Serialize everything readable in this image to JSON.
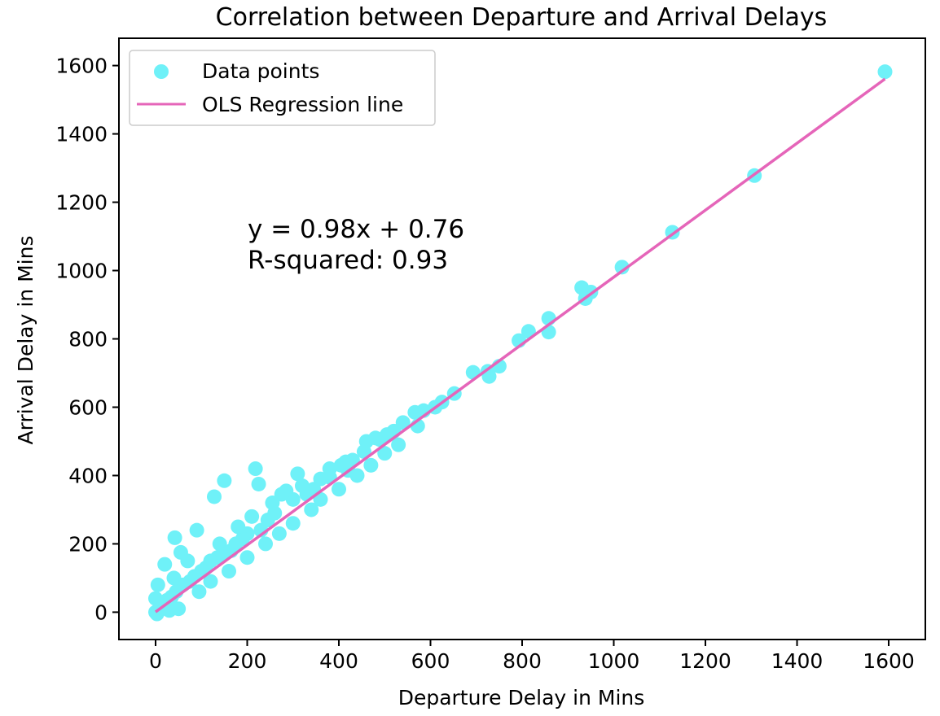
{
  "chart_data": {
    "type": "scatter",
    "title": "Correlation between Departure and Arrival Delays",
    "xlabel": "Departure Delay in Mins",
    "ylabel": "Arrival Delay in Mins",
    "xlim": [
      -80,
      1680
    ],
    "ylim": [
      -80,
      1680
    ],
    "xticks": [
      0,
      200,
      400,
      600,
      800,
      1000,
      1200,
      1400,
      1600
    ],
    "yticks": [
      0,
      200,
      400,
      600,
      800,
      1000,
      1200,
      1400,
      1600
    ],
    "grid": false,
    "legend": {
      "placement": "top-left",
      "entries": [
        "Data points",
        "OLS Regression line"
      ]
    },
    "annotations": [
      "y = 0.98x + 0.76",
      "R-squared: 0.93"
    ],
    "colors": {
      "points": "#6ff1f8",
      "line": "#e565b9"
    },
    "series": [
      {
        "name": "Data points",
        "kind": "scatter",
        "points": [
          [
            1592,
            1582
          ],
          [
            1307,
            1278
          ],
          [
            1128,
            1112
          ],
          [
            1018,
            1010
          ],
          [
            950,
            937
          ],
          [
            938,
            918
          ],
          [
            930,
            950
          ],
          [
            858,
            820
          ],
          [
            858,
            860
          ],
          [
            814,
            822
          ],
          [
            793,
            795
          ],
          [
            750,
            720
          ],
          [
            728,
            690
          ],
          [
            725,
            705
          ],
          [
            693,
            702
          ],
          [
            652,
            640
          ],
          [
            625,
            615
          ],
          [
            610,
            600
          ],
          [
            585,
            590
          ],
          [
            572,
            545
          ],
          [
            566,
            585
          ],
          [
            540,
            555
          ],
          [
            520,
            530
          ],
          [
            505,
            520
          ],
          [
            490,
            505
          ],
          [
            460,
            500
          ],
          [
            455,
            470
          ],
          [
            430,
            445
          ],
          [
            420,
            415
          ],
          [
            405,
            430
          ],
          [
            380,
            395
          ],
          [
            360,
            390
          ],
          [
            345,
            360
          ],
          [
            330,
            345
          ],
          [
            310,
            405
          ],
          [
            300,
            330
          ],
          [
            285,
            355
          ],
          [
            275,
            345
          ],
          [
            260,
            290
          ],
          [
            245,
            270
          ],
          [
            230,
            240
          ],
          [
            225,
            375
          ],
          [
            218,
            420
          ],
          [
            200,
            230
          ],
          [
            190,
            215
          ],
          [
            175,
            200
          ],
          [
            165,
            180
          ],
          [
            150,
            385
          ],
          [
            150,
            170
          ],
          [
            135,
            160
          ],
          [
            128,
            338
          ],
          [
            120,
            150
          ],
          [
            110,
            130
          ],
          [
            100,
            120
          ],
          [
            90,
            240
          ],
          [
            85,
            105
          ],
          [
            75,
            90
          ],
          [
            60,
            80
          ],
          [
            55,
            175
          ],
          [
            45,
            60
          ],
          [
            42,
            218
          ],
          [
            35,
            45
          ],
          [
            25,
            35
          ],
          [
            20,
            140
          ],
          [
            15,
            20
          ],
          [
            10,
            10
          ],
          [
            5,
            80
          ],
          [
            5,
            5
          ],
          [
            0,
            0
          ],
          [
            0,
            40
          ],
          [
            3,
            -5
          ],
          [
            30,
            5
          ],
          [
            50,
            10
          ],
          [
            40,
            100
          ],
          [
            70,
            150
          ],
          [
            95,
            60
          ],
          [
            120,
            90
          ],
          [
            140,
            200
          ],
          [
            160,
            120
          ],
          [
            180,
            250
          ],
          [
            200,
            160
          ],
          [
            210,
            280
          ],
          [
            240,
            200
          ],
          [
            255,
            320
          ],
          [
            270,
            230
          ],
          [
            300,
            260
          ],
          [
            320,
            370
          ],
          [
            340,
            300
          ],
          [
            360,
            330
          ],
          [
            380,
            420
          ],
          [
            400,
            360
          ],
          [
            415,
            440
          ],
          [
            440,
            400
          ],
          [
            470,
            430
          ],
          [
            480,
            510
          ],
          [
            500,
            465
          ],
          [
            530,
            490
          ]
        ]
      },
      {
        "name": "OLS Regression line",
        "kind": "line",
        "slope": 0.98,
        "intercept": 0.76,
        "x_range": [
          0,
          1592
        ]
      }
    ]
  }
}
